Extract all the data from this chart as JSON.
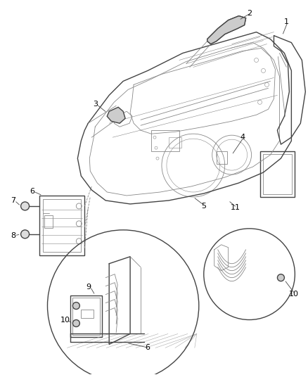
{
  "bg_color": "#ffffff",
  "line_color": "#444444",
  "label_color": "#000000",
  "label_fontsize": 8,
  "fig_width": 4.39,
  "fig_height": 5.33,
  "dpi": 100
}
